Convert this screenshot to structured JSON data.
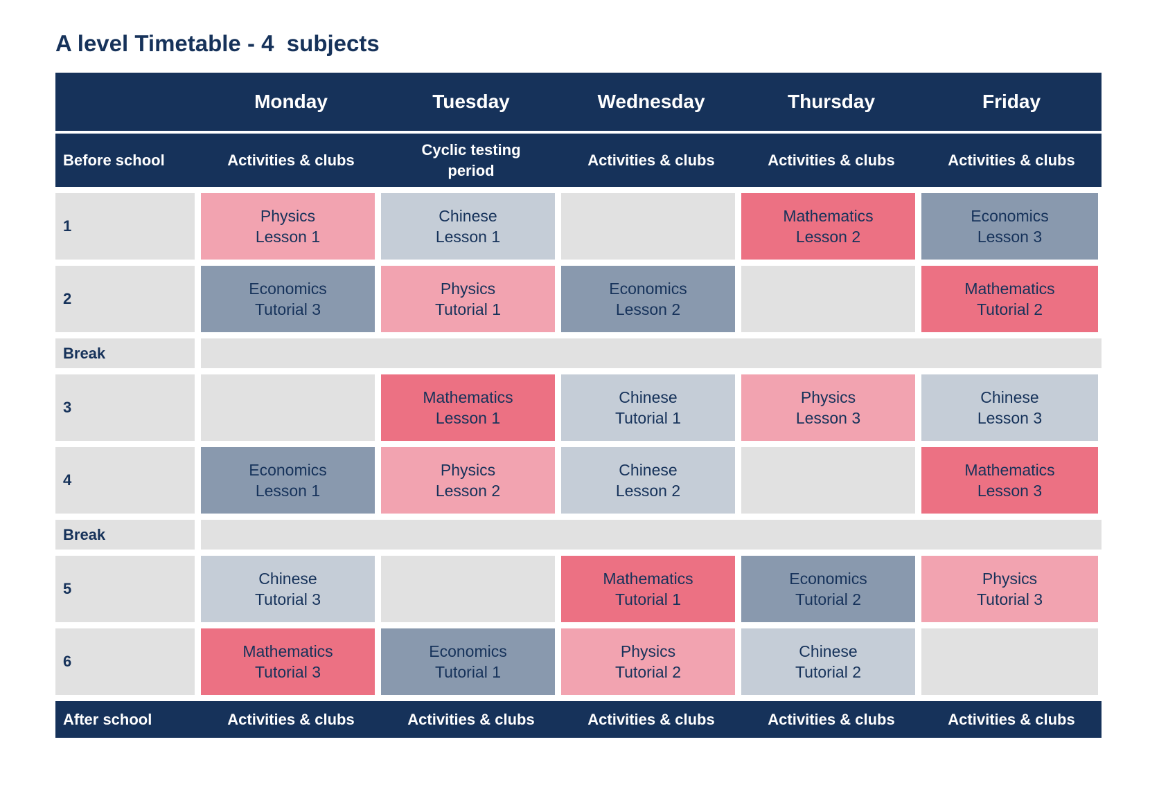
{
  "title": "A level Timetable - 4  subjects",
  "days": [
    "Monday",
    "Tuesday",
    "Wednesday",
    "Thursday",
    "Friday"
  ],
  "before_school": {
    "label": "Before school",
    "cells": [
      "Activities & clubs",
      "Cyclic testing\nperiod",
      "Activities & clubs",
      "Activities & clubs",
      "Activities & clubs"
    ]
  },
  "after_school": {
    "label": "After school",
    "cells": [
      "Activities & clubs",
      "Activities & clubs",
      "Activities & clubs",
      "Activities & clubs",
      "Activities & clubs"
    ]
  },
  "break_label": "Break",
  "subject_colors": {
    "Physics": "#f2a3b0",
    "Mathematics": "#ec7183",
    "Chinese": "#c5cdd7",
    "Economics": "#8999ae",
    "empty": "#e1e1e1",
    "header": "#16325a"
  },
  "periods": [
    {
      "label": "1",
      "cells": [
        {
          "subject": "Physics",
          "session": "Lesson 1"
        },
        {
          "subject": "Chinese",
          "session": "Lesson 1"
        },
        {
          "subject": "",
          "session": ""
        },
        {
          "subject": "Mathematics",
          "session": "Lesson 2"
        },
        {
          "subject": "Economics",
          "session": "Lesson 3"
        }
      ]
    },
    {
      "label": "2",
      "cells": [
        {
          "subject": "Economics",
          "session": "Tutorial 3"
        },
        {
          "subject": "Physics",
          "session": "Tutorial 1"
        },
        {
          "subject": "Economics",
          "session": "Lesson 2"
        },
        {
          "subject": "",
          "session": ""
        },
        {
          "subject": "Mathematics",
          "session": "Tutorial 2"
        }
      ]
    },
    {
      "label": "3",
      "cells": [
        {
          "subject": "",
          "session": ""
        },
        {
          "subject": "Mathematics",
          "session": "Lesson 1"
        },
        {
          "subject": "Chinese",
          "session": "Tutorial 1"
        },
        {
          "subject": "Physics",
          "session": "Lesson 3"
        },
        {
          "subject": "Chinese",
          "session": "Lesson 3"
        }
      ]
    },
    {
      "label": "4",
      "cells": [
        {
          "subject": "Economics",
          "session": "Lesson 1"
        },
        {
          "subject": "Physics",
          "session": "Lesson 2"
        },
        {
          "subject": "Chinese",
          "session": "Lesson 2"
        },
        {
          "subject": "",
          "session": ""
        },
        {
          "subject": "Mathematics",
          "session": "Lesson 3"
        }
      ]
    },
    {
      "label": "5",
      "cells": [
        {
          "subject": "Chinese",
          "session": "Tutorial 3"
        },
        {
          "subject": "",
          "session": ""
        },
        {
          "subject": "Mathematics",
          "session": "Tutorial 1"
        },
        {
          "subject": "Economics",
          "session": "Tutorial 2"
        },
        {
          "subject": "Physics",
          "session": "Tutorial 3"
        }
      ]
    },
    {
      "label": "6",
      "cells": [
        {
          "subject": "Mathematics",
          "session": "Tutorial 3"
        },
        {
          "subject": "Economics",
          "session": "Tutorial 1"
        },
        {
          "subject": "Physics",
          "session": "Tutorial 2"
        },
        {
          "subject": "Chinese",
          "session": "Tutorial 2"
        },
        {
          "subject": "",
          "session": ""
        }
      ]
    }
  ]
}
